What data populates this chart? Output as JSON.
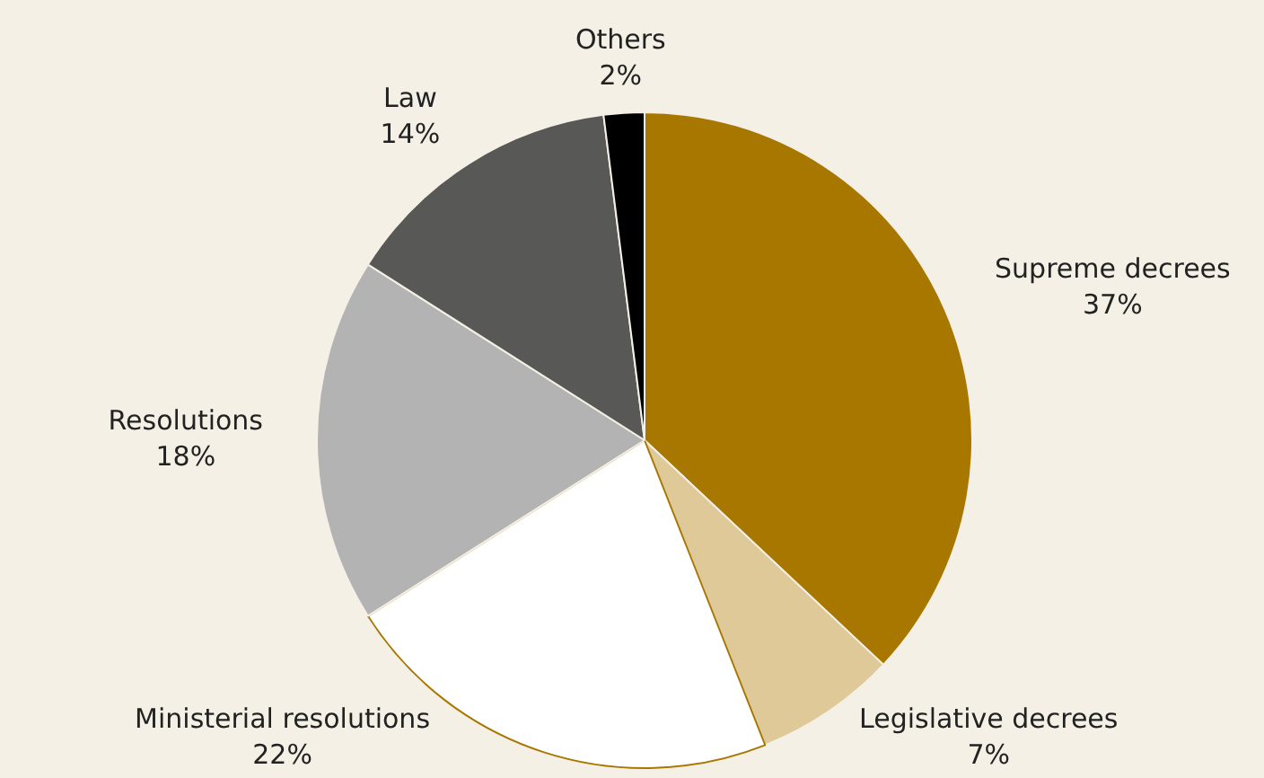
{
  "chart_data": {
    "type": "pie",
    "categories": [
      "Supreme decrees",
      "Legislative decrees",
      "Ministerial resolutions",
      "Resolutions",
      "Law",
      "Others"
    ],
    "values": [
      37,
      7,
      22,
      18,
      14,
      2
    ],
    "value_labels": [
      "37%",
      "7%",
      "22%",
      "18%",
      "14%",
      "2%"
    ],
    "colors": [
      "#a87700",
      "#dfc998",
      "#ffffff",
      "#b3b3b3",
      "#585856",
      "#000000"
    ],
    "legend": false
  }
}
